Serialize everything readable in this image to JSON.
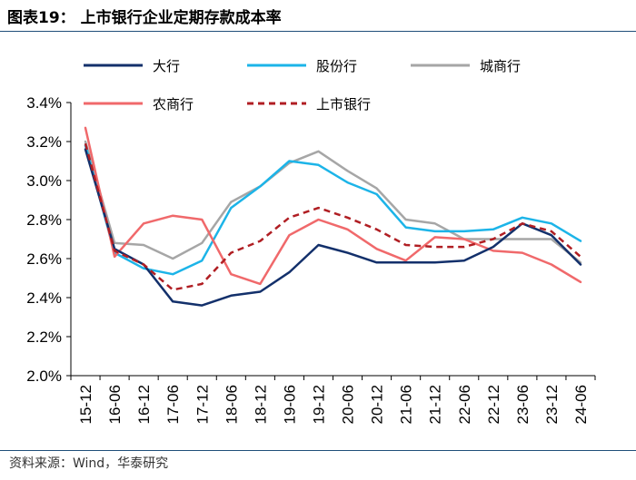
{
  "header": {
    "title": "图表19：  上市银行企业定期存款成本率"
  },
  "footer": {
    "source": "资料来源：Wind，华泰研究"
  },
  "chart_data": {
    "type": "line",
    "title": "上市银行企业定期存款成本率",
    "xlabel": "",
    "ylabel": "",
    "ylim": [
      2.0,
      3.4
    ],
    "yticks": [
      2.0,
      2.2,
      2.4,
      2.6,
      2.8,
      3.0,
      3.2,
      3.4
    ],
    "ytick_labels": [
      "2.0%",
      "2.2%",
      "2.4%",
      "2.6%",
      "2.8%",
      "3.0%",
      "3.2%",
      "3.4%"
    ],
    "grid": false,
    "legend_position": "top",
    "categories": [
      "15-12",
      "16-06",
      "16-12",
      "17-06",
      "17-12",
      "18-06",
      "18-12",
      "19-06",
      "19-12",
      "20-06",
      "20-12",
      "21-06",
      "21-12",
      "22-06",
      "22-12",
      "23-06",
      "23-12",
      "24-06"
    ],
    "series": [
      {
        "name": "大行",
        "color": "#13306b",
        "dash": "solid",
        "values": [
          3.16,
          2.65,
          2.57,
          2.38,
          2.36,
          2.41,
          2.43,
          2.53,
          2.67,
          2.63,
          2.58,
          2.58,
          2.58,
          2.59,
          2.66,
          2.78,
          2.72,
          2.57
        ]
      },
      {
        "name": "股份行",
        "color": "#1cb4e8",
        "dash": "solid",
        "values": [
          3.18,
          2.63,
          2.55,
          2.52,
          2.59,
          2.86,
          2.97,
          3.1,
          3.08,
          2.99,
          2.93,
          2.76,
          2.74,
          2.74,
          2.75,
          2.81,
          2.78,
          2.69
        ]
      },
      {
        "name": "城商行",
        "color": "#a6a6a6",
        "dash": "solid",
        "values": [
          3.2,
          2.68,
          2.67,
          2.6,
          2.68,
          2.89,
          2.97,
          3.09,
          3.15,
          3.05,
          2.96,
          2.8,
          2.78,
          2.7,
          2.7,
          2.7,
          2.7,
          2.58
        ]
      },
      {
        "name": "农商行",
        "color": "#f0696b",
        "dash": "solid",
        "values": [
          3.27,
          2.61,
          2.78,
          2.82,
          2.8,
          2.52,
          2.47,
          2.72,
          2.8,
          2.75,
          2.65,
          2.59,
          2.71,
          2.7,
          2.64,
          2.63,
          2.57,
          2.48
        ]
      },
      {
        "name": "上市银行",
        "color": "#b01e23",
        "dash": "dashed",
        "values": [
          3.19,
          2.64,
          2.57,
          2.44,
          2.47,
          2.63,
          2.69,
          2.81,
          2.86,
          2.81,
          2.75,
          2.67,
          2.66,
          2.66,
          2.7,
          2.78,
          2.74,
          2.61
        ]
      }
    ]
  }
}
